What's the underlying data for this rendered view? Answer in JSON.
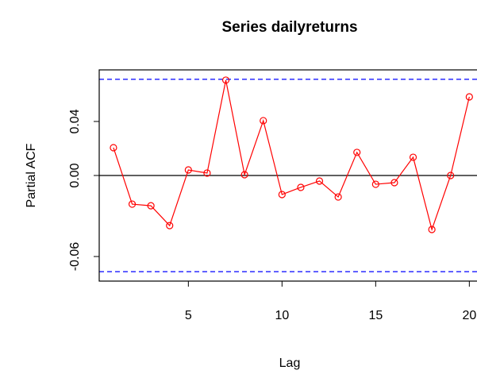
{
  "chart_data": {
    "type": "line",
    "title": "Series  dailyreturns",
    "xlabel": "Lag",
    "ylabel": "Partial ACF",
    "x": [
      1,
      2,
      3,
      4,
      5,
      6,
      7,
      8,
      9,
      10,
      11,
      12,
      13,
      14,
      15,
      16,
      17,
      18,
      19,
      20
    ],
    "values": [
      0.0206,
      -0.0212,
      -0.0224,
      -0.0371,
      0.0041,
      0.0018,
      0.0706,
      0.0006,
      0.0406,
      -0.0141,
      -0.0088,
      -0.0041,
      -0.0159,
      0.0171,
      -0.0065,
      -0.0053,
      0.0135,
      -0.04,
      0.0,
      0.0582
    ],
    "color": "#ff0000",
    "zero_line": 0,
    "ci_lines": [
      0.0712,
      -0.0712
    ],
    "ci_color": "#0000ff",
    "xlim": [
      0.24,
      20.76
    ],
    "ylim": [
      -0.0782,
      0.0782
    ],
    "xticks": [
      5,
      10,
      15,
      20
    ],
    "yticks": [
      {
        "value": -0.06,
        "label": "-0.06"
      },
      {
        "value": 0,
        "label": "0.00"
      },
      {
        "value": 0.04,
        "label": "0.04"
      }
    ]
  }
}
